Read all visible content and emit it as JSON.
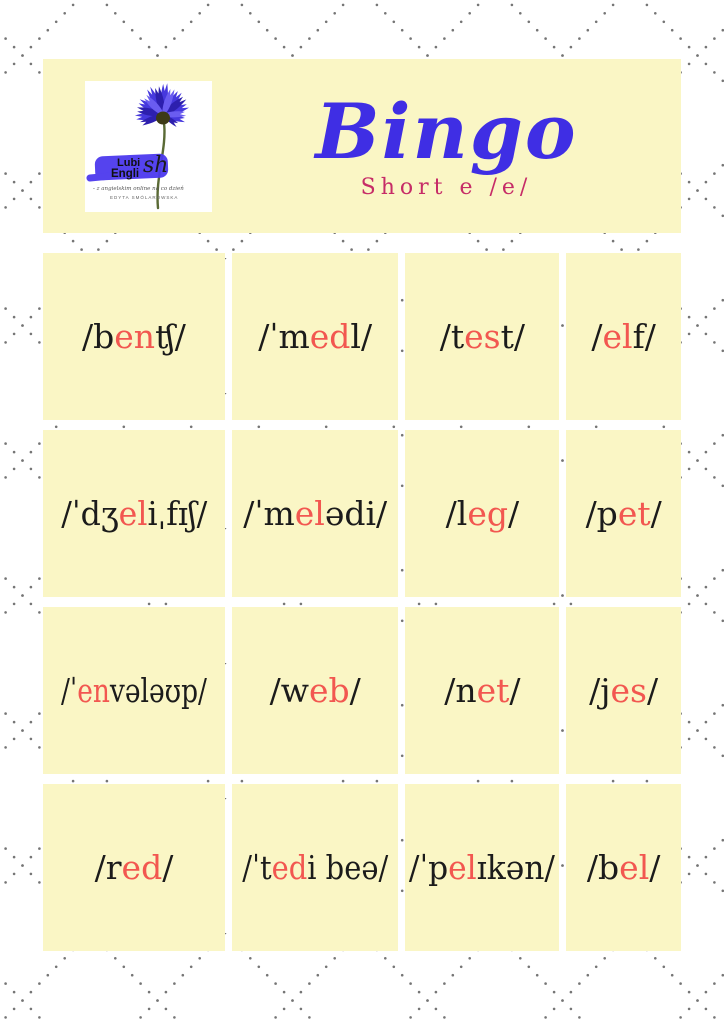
{
  "colors": {
    "page_background": "#ffffff",
    "panel_yellow": "#FAF6C5",
    "accent_red": "#F25750",
    "title_blue": "#3F2EE4",
    "subtitle_magenta": "#C62C67",
    "ink_black": "#1B1B1B",
    "pattern_dot_gray": "#757575",
    "logo_brush_blue": "#4C39EE"
  },
  "header": {
    "title": "Bingo",
    "subtitle": "Short e /e/",
    "logo": {
      "brand_word_top": "Lubi",
      "brand_word_bottom": "Engli",
      "brand_script_suffix": "sh",
      "tagline": "- z angielskim online na co dzień",
      "author": "EDYTA SMÓLAROWSKA",
      "image": "cornflower-photo"
    }
  },
  "grid": {
    "rows": 4,
    "columns": 4,
    "cells": [
      {
        "pre": "/b",
        "accent": "en",
        "post": "ʧ/"
      },
      {
        "pre": "/ˈm",
        "accent": "ed",
        "post": "l/"
      },
      {
        "pre": "/t",
        "accent": "es",
        "post": "t/"
      },
      {
        "pre": "/",
        "accent": "el",
        "post": "f/"
      },
      {
        "pre": "/ˈdʒ",
        "accent": "el",
        "post": "iˌfɪʃ/"
      },
      {
        "pre": "/ˈm",
        "accent": "el",
        "post": "ədi/"
      },
      {
        "pre": "/l",
        "accent": "eg",
        "post": "/"
      },
      {
        "pre": "/p",
        "accent": "et",
        "post": "/"
      },
      {
        "pre": "/ˈ",
        "accent": "en",
        "post": "vələʊp/"
      },
      {
        "pre": "/w",
        "accent": "eb",
        "post": "/"
      },
      {
        "pre": "/n",
        "accent": "et",
        "post": "/"
      },
      {
        "pre": "/j",
        "accent": "es",
        "post": "/"
      },
      {
        "pre": "/r",
        "accent": "ed",
        "post": "/"
      },
      {
        "pre": "/ˈt",
        "accent": "ed",
        "post": "i beə/"
      },
      {
        "pre": "/ˈp",
        "accent": "el",
        "post": "ɪkən/"
      },
      {
        "pre": "/b",
        "accent": "el",
        "post": "/"
      }
    ]
  }
}
